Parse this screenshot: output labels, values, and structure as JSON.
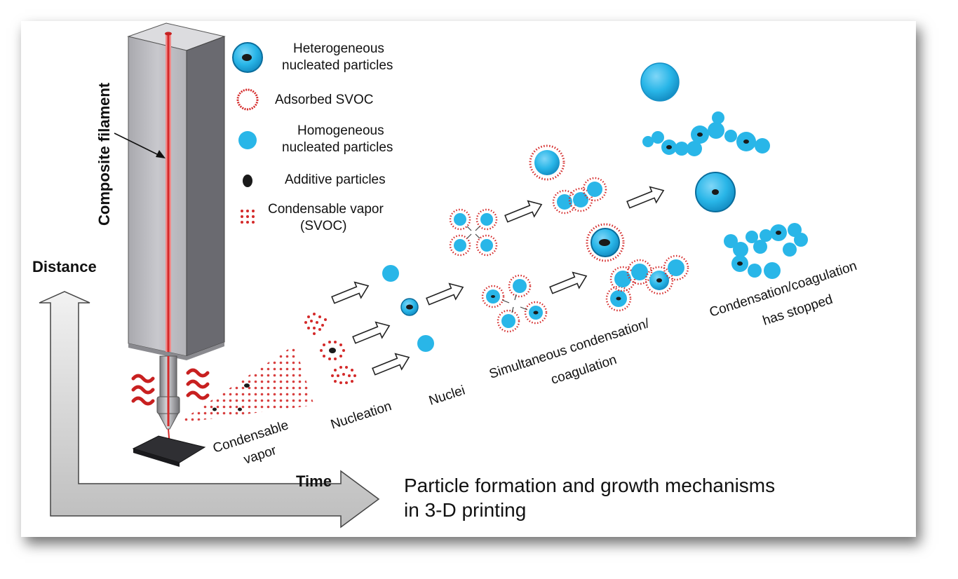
{
  "title": {
    "line1": "Particle formation and growth mechanisms",
    "line2": "in 3-D printing"
  },
  "axes": {
    "vertical": "Distance",
    "horizontal": "Time"
  },
  "filament_label": "Composite filament",
  "legend": {
    "heterogeneous_line1": "Heterogeneous",
    "heterogeneous_line2": "nucleated particles",
    "adsorbed": "Adsorbed SVOC",
    "homogeneous_line1": "Homogeneous",
    "homogeneous_line2": "nucleated particles",
    "additive": "Additive particles",
    "vapor_line1": "Condensable vapor",
    "vapor_line2": "(SVOC)"
  },
  "stages": {
    "condensable_line1": "Condensable",
    "condensable_line2": "vapor",
    "nucleation": "Nucleation",
    "nuclei": "Nuclei",
    "simultaneous_line1": "Simultaneous condensation/",
    "simultaneous_line2": "coagulation",
    "stopped_line1": "Condensation/coagulation",
    "stopped_line2": "has stopped"
  },
  "colors": {
    "particle": "#29b6e8",
    "particle_dark": "#0a7fb5",
    "vapor": "#d42a2a",
    "core": "#1a1a1a"
  }
}
